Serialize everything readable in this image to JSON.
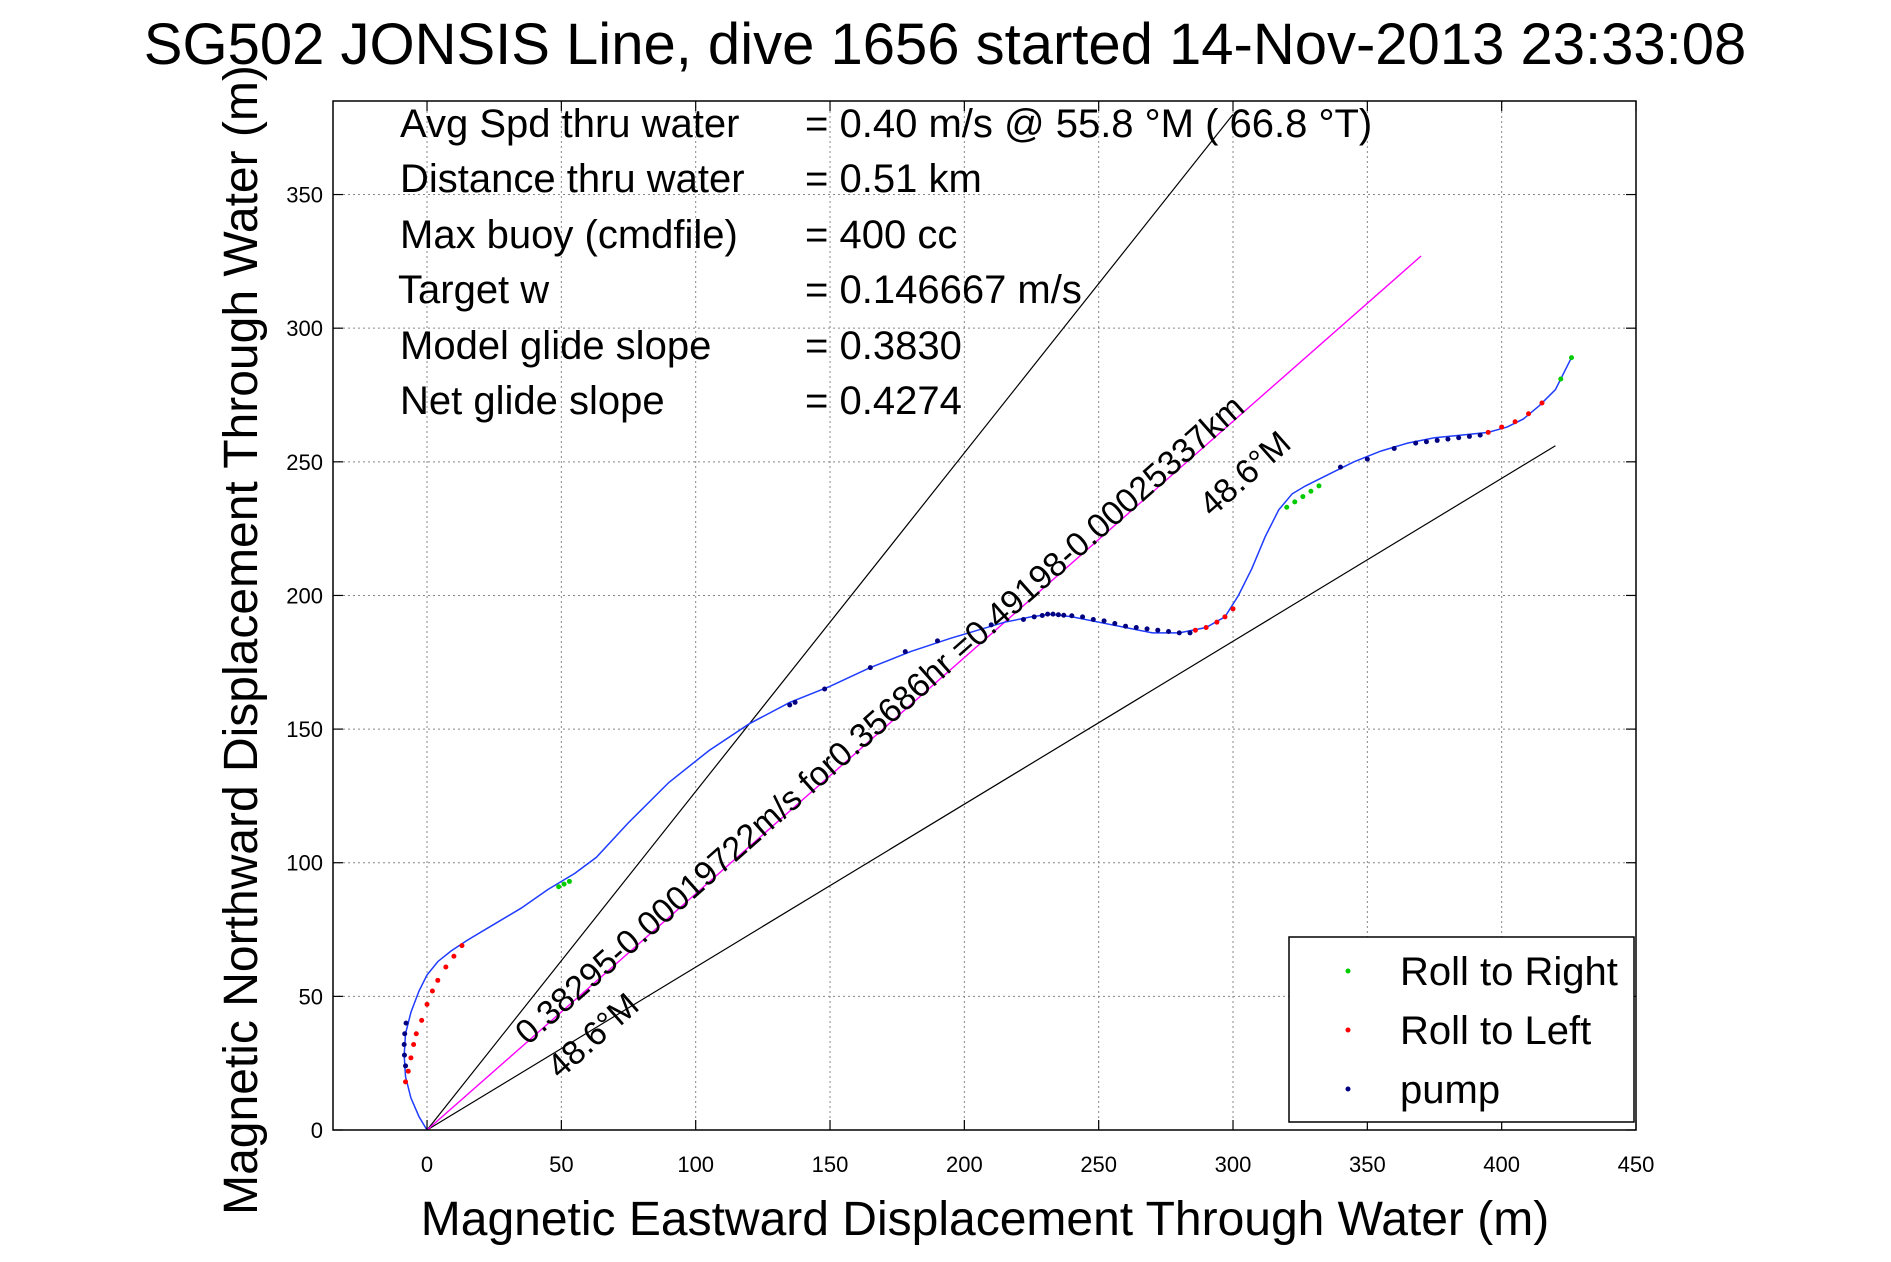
{
  "title": "SG502 JONSIS Line, dive 1656 started 14-Nov-2013 23:33:08",
  "info": [
    {
      "label": "Avg Spd thru water",
      "value": "=  0.40 m/s @  55.8 °M  ( 66.8 °T)"
    },
    {
      "label": "Distance thru water",
      "value": "=  0.51 km"
    },
    {
      "label": "Max buoy (cmdfile)",
      "value": "= 400 cc"
    },
    {
      "label": "Target w",
      "value": "= 0.146667 m/s"
    },
    {
      "label": "Model glide slope",
      "value": "= 0.3830"
    },
    {
      "label": "Net glide slope",
      "value": "= 0.4274"
    }
  ],
  "annotations": {
    "main_line": "0.38295-0.00019722m/s for0.35686hr =0.49198-0.00025337km",
    "heading_upper": "48.6°M",
    "heading_lower": "48.6°M"
  },
  "colors": {
    "track": "#1f3cff",
    "roll_right": "#00cc00",
    "roll_left": "#ff0000",
    "pump": "#000080",
    "reference_lines": "#000000",
    "heading_line": "#ff00ff",
    "grid": "#888888"
  },
  "chart_data": {
    "type": "line",
    "title": "SG502 JONSIS Line, dive 1656 started 14-Nov-2013 23:33:08",
    "xlabel": "Magnetic Eastward Displacement Through Water (m)",
    "ylabel": "Magnetic Northward Displacement Through Water (m)",
    "xlim": [
      -35,
      450
    ],
    "ylim": [
      0,
      385
    ],
    "xticks": [
      0,
      50,
      100,
      150,
      200,
      250,
      300,
      350,
      400,
      450
    ],
    "yticks": [
      0,
      50,
      100,
      150,
      200,
      250,
      300,
      350
    ],
    "grid": true,
    "legend_position": "bottom-right",
    "legend": [
      "Roll to Right",
      "Roll to Left",
      "pump"
    ],
    "series": [
      {
        "name": "track",
        "x": [
          0,
          -3,
          -6,
          -8,
          -8.5,
          -8,
          -6,
          -3,
          0,
          4,
          9,
          15,
          25,
          35,
          45,
          55,
          63,
          75,
          90,
          105,
          120,
          135,
          150,
          165,
          180,
          195,
          205,
          215,
          225,
          232,
          240,
          250,
          260,
          270,
          280,
          290,
          297,
          302,
          307,
          312,
          317,
          322,
          327,
          335,
          345,
          355,
          365,
          375,
          385,
          395,
          402,
          408,
          414,
          420,
          426
        ],
        "y": [
          0,
          5,
          12,
          20,
          28,
          36,
          44,
          52,
          58,
          63,
          67,
          71,
          77,
          83,
          90,
          96,
          102,
          115,
          130,
          142,
          152,
          160,
          166,
          173,
          179,
          184,
          187,
          190,
          192,
          193,
          192,
          190,
          188,
          186,
          186,
          188,
          192,
          200,
          210,
          222,
          232,
          238,
          241,
          245,
          250,
          254,
          257,
          259,
          260,
          261,
          263,
          266,
          271,
          277,
          289
        ]
      },
      {
        "name": "Roll to Right",
        "x": [
          49,
          51,
          53,
          320,
          323,
          326,
          329,
          332,
          422,
          426
        ],
        "y": [
          91,
          92,
          93,
          233,
          235,
          237,
          239,
          241,
          281,
          289
        ]
      },
      {
        "name": "Roll to Left",
        "x": [
          -8,
          -7,
          -6,
          -5,
          -4,
          -2,
          0,
          2,
          4,
          7,
          10,
          13,
          286,
          290,
          294,
          297,
          300,
          395,
          400,
          405,
          410,
          415
        ],
        "y": [
          18,
          22,
          27,
          32,
          36,
          41,
          47,
          52,
          56,
          61,
          65,
          69,
          187,
          188,
          190,
          192,
          195,
          261,
          263,
          265,
          268,
          272
        ]
      },
      {
        "name": "pump",
        "x": [
          -8,
          -8.4,
          -8.5,
          -8.3,
          -7.8,
          135,
          137,
          148,
          165,
          178,
          190,
          210,
          222,
          226,
          229,
          231,
          233,
          235,
          237,
          240,
          244,
          248,
          252,
          256,
          260,
          264,
          268,
          272,
          276,
          280,
          284,
          340,
          350,
          360,
          368,
          372,
          376,
          380,
          384,
          388,
          392
        ],
        "y": [
          24,
          28,
          32,
          36,
          40,
          159,
          160,
          165,
          173,
          179,
          183,
          189,
          191,
          192,
          192.5,
          193,
          193,
          192.8,
          192.6,
          192.4,
          192,
          191,
          190.5,
          189.5,
          188.5,
          188,
          187.5,
          187,
          186.5,
          186,
          186,
          248,
          251,
          255,
          257,
          257.5,
          258,
          258.5,
          259,
          259.5,
          260
        ]
      }
    ],
    "reference_lines": [
      {
        "x": [
          0,
          300
        ],
        "y": [
          0,
          380
        ]
      },
      {
        "x": [
          0,
          420
        ],
        "y": [
          0,
          256
        ]
      },
      {
        "x": [
          0,
          370
        ],
        "y": [
          0,
          327
        ]
      }
    ]
  }
}
